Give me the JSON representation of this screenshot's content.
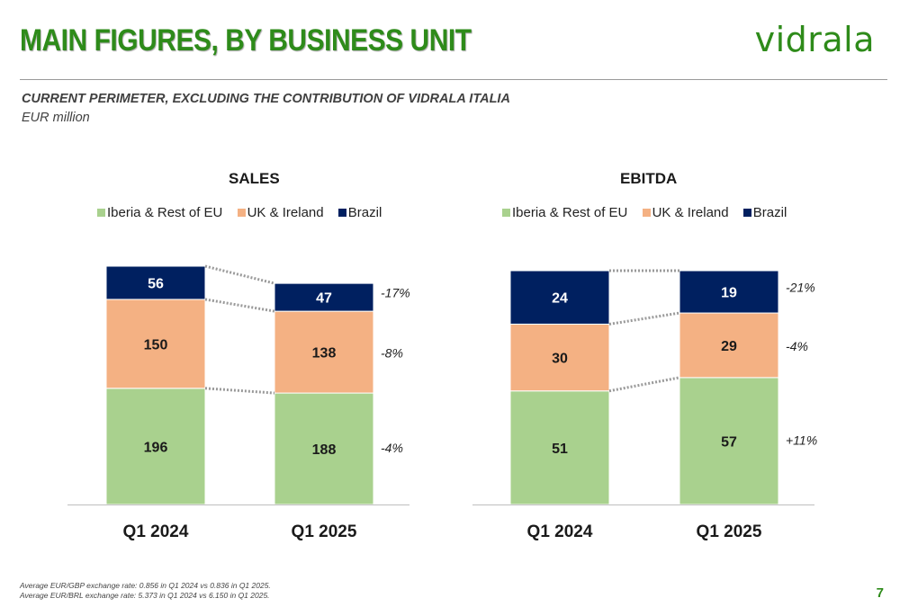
{
  "header": {
    "title": "MAIN FIGURES, BY BUSINESS UNIT",
    "logo": "vidrala",
    "subtitle": "CURRENT PERIMETER, EXCLUDING THE CONTRIBUTION OF VIDRALA ITALIA",
    "unit": "EUR million"
  },
  "colors": {
    "iberia": "#a9d18e",
    "uk": "#f4b183",
    "brazil": "#002060",
    "brand": "#2e8b1a"
  },
  "chart_data": [
    {
      "type": "bar",
      "stacked": true,
      "title": "SALES",
      "categories": [
        "Q1 2024",
        "Q1 2025"
      ],
      "series": [
        {
          "name": "Iberia & Rest of EU",
          "values": [
            196,
            188
          ],
          "labels": [
            "196",
            "188"
          ],
          "change": "-4%"
        },
        {
          "name": "UK & Ireland",
          "values": [
            150,
            138
          ],
          "labels": [
            "150",
            "138"
          ],
          "change": "-8%"
        },
        {
          "name": "Brazil",
          "values": [
            56,
            47
          ],
          "labels": [
            "56",
            "47"
          ],
          "change": "-17%"
        }
      ],
      "legend_position": "top"
    },
    {
      "type": "bar",
      "stacked": true,
      "title": "EBITDA",
      "categories": [
        "Q1 2024",
        "Q1 2025"
      ],
      "series": [
        {
          "name": "Iberia & Rest of EU",
          "values": [
            51,
            57
          ],
          "labels": [
            "51",
            "57"
          ],
          "change": "+11%"
        },
        {
          "name": "UK & Ireland",
          "values": [
            30,
            29
          ],
          "labels": [
            "30",
            "29"
          ],
          "change": "-4%"
        },
        {
          "name": "Brazil",
          "values": [
            24,
            19
          ],
          "labels": [
            "24",
            "19"
          ],
          "change": "-21%"
        }
      ],
      "legend_position": "top"
    }
  ],
  "footnotes": [
    "Average EUR/GBP exchange rate: 0.856 in Q1 2024 vs 0.836 in Q1 2025.",
    "Average EUR/BRL exchange rate: 5.373 in Q1 2024 vs 6.150 in Q1 2025."
  ],
  "page_number": "7"
}
